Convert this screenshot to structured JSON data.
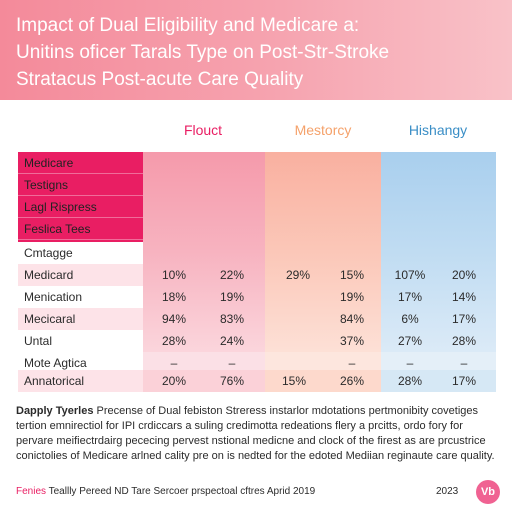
{
  "header": {
    "title_lines": [
      "Impact of Dual Eligibility and Medicare a:",
      "Unitins oficer Tarals Type on Post-Str-Stroke",
      "Stratacus Post-acute Care Quality"
    ]
  },
  "table": {
    "columns": [
      {
        "label": "Flouct",
        "color": "#e91e63"
      },
      {
        "label": "Mestorcy",
        "color": "#f5a26b"
      },
      {
        "label": "Hishangy",
        "color": "#3a8ec6"
      }
    ],
    "label_rows": [
      "Medicare",
      "Testigns",
      "Lagl Rispress",
      "Feslica Tees"
    ],
    "rows": [
      {
        "label": "Cmtagge",
        "values": [
          "",
          "",
          "",
          "",
          "",
          ""
        ]
      },
      {
        "label": "Medicard",
        "values": [
          "10%",
          "22%",
          "29%",
          "15%",
          "107%",
          "20%"
        ]
      },
      {
        "label": "Menication",
        "values": [
          "18%",
          "19%",
          "",
          "19%",
          "17%",
          "14%"
        ]
      },
      {
        "label": "Mecicaral",
        "values": [
          "94%",
          "83%",
          "",
          "84%",
          "6%",
          "17%"
        ]
      },
      {
        "label": "Untal",
        "values": [
          "28%",
          "24%",
          "",
          "37%",
          "27%",
          "28%"
        ]
      },
      {
        "label": "Mote Agtica",
        "values": [
          "–",
          "–",
          "",
          "–",
          "–",
          "–"
        ]
      },
      {
        "label": "Annatorical",
        "values": [
          "20%",
          "76%",
          "15%",
          "26%",
          "28%",
          "17%"
        ]
      }
    ]
  },
  "notes": {
    "heading": "Dapply Tyerles",
    "text": "Precense of Dual febiston Streress instarlor mdotations pertmonibity covetiges tertion emnirectiol for IPI crdiccars a suling credimotta redeations flery a prcitts, ordo fory for pervare meifiectrdairg pececing pervest nstional medicne and clock of the firest as are prcustrice conictolies of Medicare arlned cality pre on is nedted for the edoted Mediian reginaute care quality."
  },
  "footer": {
    "tag": "Fenies",
    "text": "Teallly Pereed ND Tare Sercoer prspectoal cftres Aprid 2019",
    "year": "2023",
    "logo": "Vb"
  },
  "colors": {
    "header": "#f48a9a",
    "accent": "#e91e63",
    "col1_light": "#fbd1d8",
    "col1_dark": "#f5a4b2",
    "col2_light": "#fdd9cc",
    "col2_dark": "#f9b9a6",
    "col3_light": "#d6e8f5",
    "col3_dark": "#b9d7ee"
  }
}
